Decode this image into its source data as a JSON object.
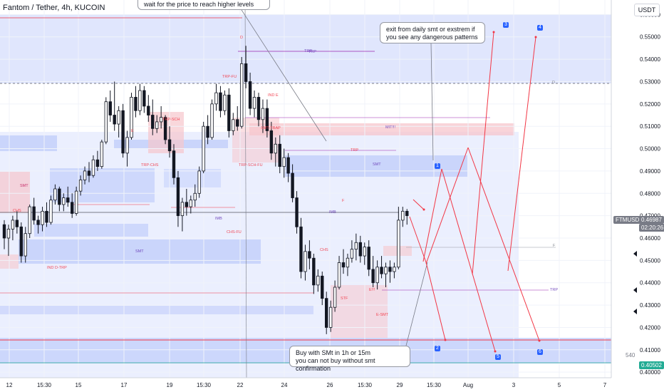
{
  "header": {
    "symbol_line": "Fantom / Tether, 4h, KUCOIN"
  },
  "currency_button": "USDT",
  "notes": {
    "top": "wait for the price to reach higher levels",
    "exit": "exit from daily smt or exstrem if you see any dangerous patterns",
    "buy_line1": "Buy with SMt in 1h or 15m",
    "buy_line2": "you can not buy without smt confirmation"
  },
  "badges": [
    "1",
    "2",
    "3",
    "4",
    "5",
    "6"
  ],
  "price_tags": {
    "symbol": "FTMUSDT",
    "last": "0.46987",
    "countdown": "02:20:26",
    "target": "0.40502",
    "small_label": "540"
  },
  "colors": {
    "bull": "#ffffff",
    "bear": "#131722",
    "blue_zone": "#c7d2fb",
    "pink_zone": "#f7c6cc",
    "red": "#f23645",
    "arrow": "#f23645",
    "badge": "#2962ff",
    "last_price_tag": "#787b86",
    "target_tag": "#22ab94"
  },
  "zone_labels": [
    "SMT",
    "MIT!!!",
    "TRP",
    "E",
    "D",
    "F",
    "IMB",
    "STF",
    "CHS",
    "E-SMT",
    "E!!!",
    "IND E",
    "IND D-TRP",
    "TRP-CHS",
    "TRP-FU",
    "TRP-SCH-FU",
    "CHS-FU",
    "SMT-TRAP",
    "TRP-SCH"
  ],
  "chart_data": {
    "type": "candlestick",
    "title": "Fantom / Tether, 4h, KUCOIN",
    "xlabel": "",
    "ylabel": "",
    "ylim": [
      0.3975,
      0.5665
    ],
    "x_ticks": [
      "12",
      "15:30",
      "15",
      "17",
      "19",
      "15:30",
      "22",
      "24",
      "26",
      "15:30",
      "29",
      "15:30",
      "Aug",
      "3",
      "5",
      "7"
    ],
    "y_ticks": [
      "0.56000",
      "0.55000",
      "0.54000",
      "0.53000",
      "0.52000",
      "0.51000",
      "0.50000",
      "0.49000",
      "0.48000",
      "0.47000",
      "0.46000",
      "0.45000",
      "0.44000",
      "0.43000",
      "0.42000",
      "0.41000",
      "0.40000"
    ],
    "last_price": 0.46987,
    "target_price": 0.40502,
    "grid": true,
    "candles_ohlc": [
      [
        0.466,
        0.468,
        0.455,
        0.46
      ],
      [
        0.46,
        0.466,
        0.452,
        0.464
      ],
      [
        0.464,
        0.47,
        0.459,
        0.468
      ],
      [
        0.468,
        0.472,
        0.462,
        0.465
      ],
      [
        0.465,
        0.467,
        0.449,
        0.452
      ],
      [
        0.452,
        0.465,
        0.449,
        0.462
      ],
      [
        0.462,
        0.475,
        0.46,
        0.474
      ],
      [
        0.474,
        0.478,
        0.466,
        0.468
      ],
      [
        0.468,
        0.47,
        0.462,
        0.466
      ],
      [
        0.466,
        0.474,
        0.463,
        0.472
      ],
      [
        0.472,
        0.476,
        0.465,
        0.467
      ],
      [
        0.467,
        0.479,
        0.466,
        0.477
      ],
      [
        0.477,
        0.484,
        0.475,
        0.482
      ],
      [
        0.482,
        0.483,
        0.472,
        0.475
      ],
      [
        0.475,
        0.48,
        0.472,
        0.478
      ],
      [
        0.478,
        0.483,
        0.474,
        0.476
      ],
      [
        0.476,
        0.48,
        0.469,
        0.471
      ],
      [
        0.471,
        0.483,
        0.47,
        0.481
      ],
      [
        0.481,
        0.488,
        0.479,
        0.486
      ],
      [
        0.486,
        0.492,
        0.484,
        0.49
      ],
      [
        0.49,
        0.494,
        0.485,
        0.488
      ],
      [
        0.488,
        0.497,
        0.487,
        0.495
      ],
      [
        0.495,
        0.499,
        0.49,
        0.492
      ],
      [
        0.492,
        0.504,
        0.491,
        0.503
      ],
      [
        0.503,
        0.523,
        0.502,
        0.521
      ],
      [
        0.521,
        0.526,
        0.512,
        0.515
      ],
      [
        0.515,
        0.53,
        0.508,
        0.511
      ],
      [
        0.511,
        0.519,
        0.505,
        0.517
      ],
      [
        0.517,
        0.52,
        0.496,
        0.498
      ],
      [
        0.498,
        0.508,
        0.492,
        0.505
      ],
      [
        0.505,
        0.525,
        0.504,
        0.523
      ],
      [
        0.523,
        0.528,
        0.514,
        0.517
      ],
      [
        0.517,
        0.529,
        0.515,
        0.526
      ],
      [
        0.526,
        0.528,
        0.516,
        0.519
      ],
      [
        0.519,
        0.524,
        0.512,
        0.515
      ],
      [
        0.515,
        0.522,
        0.506,
        0.509
      ],
      [
        0.509,
        0.515,
        0.507,
        0.512
      ],
      [
        0.512,
        0.519,
        0.509,
        0.514
      ],
      [
        0.514,
        0.515,
        0.502,
        0.504
      ],
      [
        0.504,
        0.51,
        0.496,
        0.499
      ],
      [
        0.499,
        0.502,
        0.484,
        0.487
      ],
      [
        0.487,
        0.49,
        0.465,
        0.47
      ],
      [
        0.47,
        0.478,
        0.463,
        0.476
      ],
      [
        0.476,
        0.482,
        0.47,
        0.474
      ],
      [
        0.474,
        0.479,
        0.471,
        0.477
      ],
      [
        0.477,
        0.484,
        0.474,
        0.48
      ],
      [
        0.48,
        0.492,
        0.478,
        0.49
      ],
      [
        0.49,
        0.512,
        0.489,
        0.51
      ],
      [
        0.51,
        0.515,
        0.502,
        0.505
      ],
      [
        0.505,
        0.522,
        0.504,
        0.52
      ],
      [
        0.52,
        0.529,
        0.517,
        0.525
      ],
      [
        0.525,
        0.528,
        0.514,
        0.517
      ],
      [
        0.517,
        0.526,
        0.515,
        0.524
      ],
      [
        0.524,
        0.527,
        0.505,
        0.508
      ],
      [
        0.508,
        0.516,
        0.506,
        0.513
      ],
      [
        0.513,
        0.519,
        0.508,
        0.51
      ],
      [
        0.51,
        0.541,
        0.509,
        0.538
      ],
      [
        0.538,
        0.546,
        0.527,
        0.53
      ],
      [
        0.53,
        0.534,
        0.515,
        0.518
      ],
      [
        0.518,
        0.526,
        0.514,
        0.523
      ],
      [
        0.523,
        0.525,
        0.51,
        0.513
      ],
      [
        0.513,
        0.522,
        0.507,
        0.518
      ],
      [
        0.518,
        0.522,
        0.505,
        0.508
      ],
      [
        0.508,
        0.512,
        0.495,
        0.498
      ],
      [
        0.498,
        0.505,
        0.492,
        0.502
      ],
      [
        0.502,
        0.506,
        0.489,
        0.492
      ],
      [
        0.492,
        0.5,
        0.487,
        0.496
      ],
      [
        0.496,
        0.498,
        0.485,
        0.489
      ],
      [
        0.489,
        0.493,
        0.476,
        0.478
      ],
      [
        0.478,
        0.481,
        0.462,
        0.465
      ],
      [
        0.465,
        0.469,
        0.442,
        0.445
      ],
      [
        0.445,
        0.457,
        0.441,
        0.454
      ],
      [
        0.454,
        0.459,
        0.446,
        0.451
      ],
      [
        0.451,
        0.453,
        0.435,
        0.439
      ],
      [
        0.439,
        0.446,
        0.436,
        0.443
      ],
      [
        0.443,
        0.445,
        0.43,
        0.433
      ],
      [
        0.433,
        0.436,
        0.417,
        0.42
      ],
      [
        0.42,
        0.432,
        0.418,
        0.429
      ],
      [
        0.429,
        0.441,
        0.427,
        0.438
      ],
      [
        0.438,
        0.452,
        0.437,
        0.449
      ],
      [
        0.449,
        0.455,
        0.444,
        0.447
      ],
      [
        0.447,
        0.453,
        0.443,
        0.451
      ],
      [
        0.451,
        0.459,
        0.449,
        0.455
      ],
      [
        0.455,
        0.462,
        0.45,
        0.458
      ],
      [
        0.458,
        0.461,
        0.449,
        0.452
      ],
      [
        0.452,
        0.458,
        0.448,
        0.456
      ],
      [
        0.456,
        0.459,
        0.443,
        0.446
      ],
      [
        0.446,
        0.452,
        0.438,
        0.44
      ],
      [
        0.44,
        0.45,
        0.437,
        0.447
      ],
      [
        0.447,
        0.452,
        0.442,
        0.444
      ],
      [
        0.444,
        0.449,
        0.438,
        0.447
      ],
      [
        0.447,
        0.45,
        0.44,
        0.445
      ],
      [
        0.445,
        0.449,
        0.442,
        0.447
      ],
      [
        0.447,
        0.474,
        0.446,
        0.468
      ],
      [
        0.468,
        0.474,
        0.465,
        0.472
      ],
      [
        0.472,
        0.473,
        0.466,
        0.47
      ]
    ]
  }
}
